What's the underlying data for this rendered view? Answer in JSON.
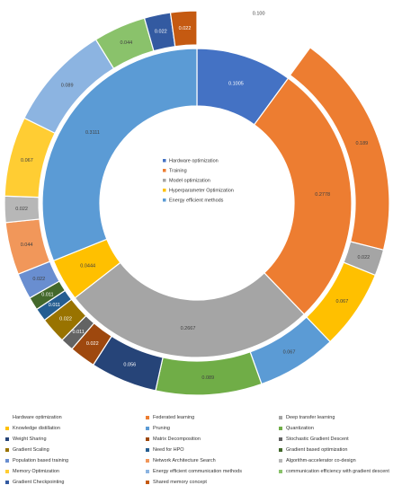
{
  "chart_data": {
    "type": "donut",
    "inner_ring": {
      "series": [
        {
          "name": "Hardware optimization",
          "value": 0.1005,
          "label": "0.1005",
          "color": "#4472C4"
        },
        {
          "name": "Training",
          "value": 0.2778,
          "label": "0.2778",
          "color": "#ED7D31"
        },
        {
          "name": "Model optimization",
          "value": 0.2667,
          "label": "0.2667",
          "color": "#A5A5A5"
        },
        {
          "name": "Hyperparameter Optimization",
          "value": 0.0444,
          "label": "0.0444",
          "color": "#FFC000"
        },
        {
          "name": "Energy efficient methods",
          "value": 0.3111,
          "label": "0.3111",
          "color": "#5B9BD5"
        }
      ]
    },
    "outer_ring": {
      "series": [
        {
          "name": "Hardware optimization",
          "value": 0.1,
          "label": "0.100",
          "color": "#ffffff"
        },
        {
          "name": "Federated learning",
          "value": 0.189,
          "label": "0.189",
          "color": "#ED7D31"
        },
        {
          "name": "Deep transfer learning",
          "value": 0.022,
          "label": "0.022",
          "color": "#A5A5A5"
        },
        {
          "name": "Knowledge distillation",
          "value": 0.067,
          "label": "0.067",
          "color": "#FFC000"
        },
        {
          "name": "Pruning",
          "value": 0.067,
          "label": "0.067",
          "color": "#5B9BD5"
        },
        {
          "name": "Quantization",
          "value": 0.089,
          "label": "0.089",
          "color": "#70AD47"
        },
        {
          "name": "Weight Sharing",
          "value": 0.056,
          "label": "0.056",
          "color": "#264478"
        },
        {
          "name": "Matrix Decomposition",
          "value": 0.022,
          "label": "0.022",
          "color": "#9E480E"
        },
        {
          "name": "Stochastic Gradient Descent",
          "value": 0.011,
          "label": "0.011",
          "color": "#636363"
        },
        {
          "name": "Gradient Scaling",
          "value": 0.022,
          "label": "0.022",
          "color": "#997300"
        },
        {
          "name": "Need for HPO",
          "value": 0.011,
          "label": "0.011",
          "color": "#255E91"
        },
        {
          "name": "Gradient based optimization",
          "value": 0.011,
          "label": "0.011",
          "color": "#43682B"
        },
        {
          "name": "Population based training",
          "value": 0.022,
          "label": "0.022",
          "color": "#698ED0"
        },
        {
          "name": "Network Architecture Search",
          "value": 0.044,
          "label": "0.044",
          "color": "#F1975A"
        },
        {
          "name": "Algorithm-accelerator co-design",
          "value": 0.022,
          "label": "0.022",
          "color": "#B7B7B7"
        },
        {
          "name": "Memory Optimization",
          "value": 0.067,
          "label": "0.067",
          "color": "#FFCD33"
        },
        {
          "name": "Energy efficient communication methods",
          "value": 0.089,
          "label": "0.089",
          "color": "#8CB4E1"
        },
        {
          "name": "communication efficiency with gradient descent",
          "value": 0.044,
          "label": "0.044",
          "color": "#8AC26B"
        },
        {
          "name": "Gradient Checkpointing",
          "value": 0.022,
          "label": "0.022",
          "color": "#335AA1"
        },
        {
          "name": "Shared memory concept",
          "value": 0.022,
          "label": "0.022",
          "color": "#C55A11"
        }
      ]
    },
    "inner_legend": [
      {
        "name": "Hardware optimization",
        "color": "#4472C4"
      },
      {
        "name": "Training",
        "color": "#ED7D31"
      },
      {
        "name": "Model optimization",
        "color": "#A5A5A5"
      },
      {
        "name": "Hyperparameter Optimization",
        "color": "#FFC000"
      },
      {
        "name": "Energy efficient methods",
        "color": "#5B9BD5"
      }
    ],
    "legend": [
      {
        "name": "Hardware optimization",
        "color": "#ffffff"
      },
      {
        "name": "Federated learning",
        "color": "#ED7D31"
      },
      {
        "name": "Deep transfer learning",
        "color": "#A5A5A5"
      },
      {
        "name": "Knowledge distillation",
        "color": "#FFC000"
      },
      {
        "name": "Pruning",
        "color": "#5B9BD5"
      },
      {
        "name": "Quantization",
        "color": "#70AD47"
      },
      {
        "name": "Weight Sharing",
        "color": "#264478"
      },
      {
        "name": "Matrix Decomposition",
        "color": "#9E480E"
      },
      {
        "name": "Stochastic Gradient Descent",
        "color": "#636363"
      },
      {
        "name": "Gradient Scaling",
        "color": "#997300"
      },
      {
        "name": "Need for HPO",
        "color": "#255E91"
      },
      {
        "name": "Gradient based optimization",
        "color": "#43682B"
      },
      {
        "name": "Population based training",
        "color": "#698ED0"
      },
      {
        "name": "Network Architecture Search",
        "color": "#F1975A"
      },
      {
        "name": "Algorithm-accelerator co-design",
        "color": "#B7B7B7"
      },
      {
        "name": "Memory Optimization",
        "color": "#FFCD33"
      },
      {
        "name": "Energy efficient communication methods",
        "color": "#8CB4E1"
      },
      {
        "name": "communication efficiency with gradient descent",
        "color": "#8AC26B"
      },
      {
        "name": "Gradient Checkpointing",
        "color": "#335AA1"
      },
      {
        "name": "Shared memory concept",
        "color": "#C55A11"
      }
    ],
    "legend_placement": "bottom"
  }
}
